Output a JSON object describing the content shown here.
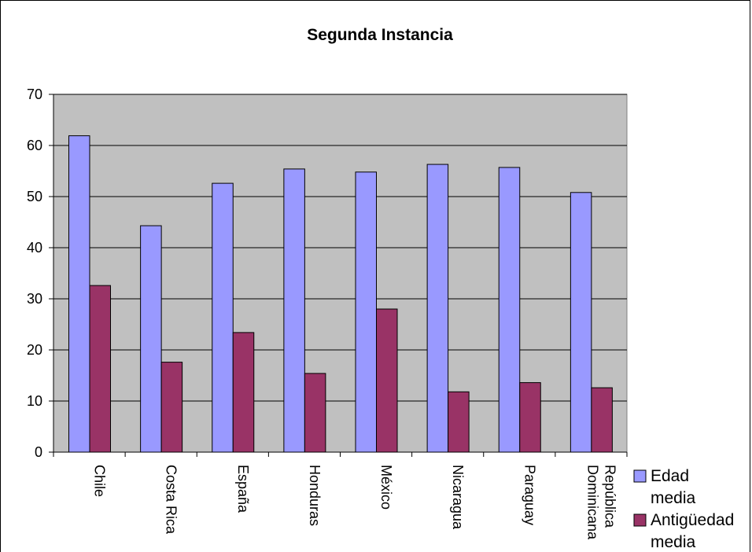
{
  "chart_data": {
    "type": "bar",
    "title": "Segunda Instancia",
    "categories": [
      "Chile",
      "Costa Rica",
      "España",
      "Honduras",
      "México",
      "Nicaragua",
      "Paraguay",
      "República Dominicana"
    ],
    "series": [
      {
        "name": "Edad media",
        "values": [
          61.9,
          44.3,
          52.6,
          55.4,
          54.8,
          56.3,
          55.7,
          50.8
        ],
        "color": "#9999ff"
      },
      {
        "name": "Antigüedad media",
        "values": [
          32.6,
          17.6,
          23.4,
          15.4,
          28.0,
          11.8,
          13.6,
          12.6
        ],
        "color": "#993366"
      }
    ],
    "ylim": [
      0,
      70
    ],
    "yticks": [
      0,
      10,
      20,
      30,
      40,
      50,
      60,
      70
    ],
    "grid": true,
    "plot_background": "#c0c0c0",
    "legend_position": "right",
    "legend_lines": [
      [
        "Edad",
        "media"
      ],
      [
        "Antigüedad",
        "media"
      ]
    ],
    "category_lines": [
      [
        "Chile"
      ],
      [
        "Costa Rica"
      ],
      [
        "España"
      ],
      [
        "Honduras"
      ],
      [
        "México"
      ],
      [
        "Nicaragua"
      ],
      [
        "Paraguay"
      ],
      [
        "República",
        "Dominicana"
      ]
    ]
  }
}
